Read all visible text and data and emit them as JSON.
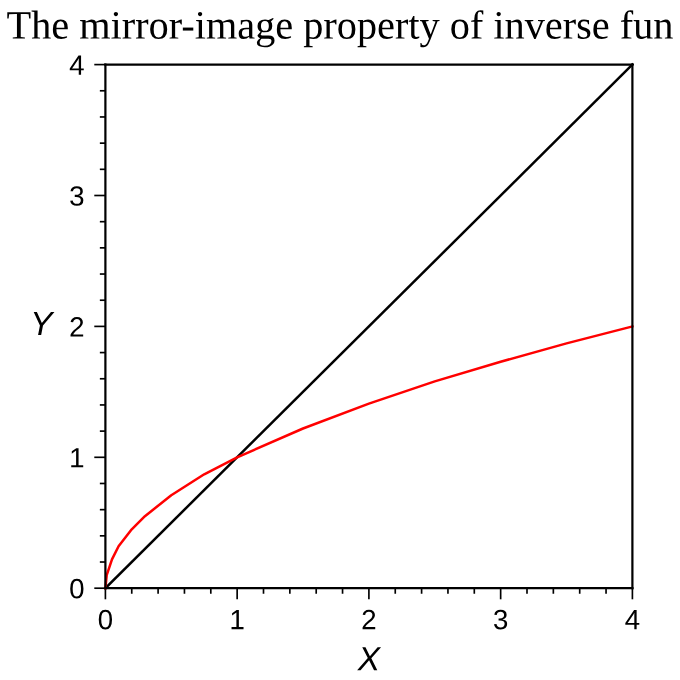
{
  "chart_data": {
    "type": "line",
    "title": "The mirror-image property of inverse fun",
    "xlabel": "X",
    "ylabel": "Y",
    "xlim": [
      0,
      4
    ],
    "ylim": [
      0,
      4
    ],
    "xticks": [
      0,
      1,
      2,
      3,
      4
    ],
    "yticks": [
      0,
      1,
      2,
      3,
      4
    ],
    "grid": false,
    "legend": false,
    "marker": "none",
    "line_style": "solid",
    "series": [
      {
        "color": "#000000",
        "x": [
          0,
          4
        ],
        "values": [
          0,
          4
        ]
      },
      {
        "color": "#ff0000",
        "x": [
          0,
          0.01,
          0.05,
          0.1,
          0.2,
          0.3,
          0.5,
          0.75,
          1,
          1.5,
          2,
          2.5,
          3,
          3.5,
          4
        ],
        "values": [
          0,
          0.1,
          0.22,
          0.32,
          0.45,
          0.55,
          0.71,
          0.87,
          1,
          1.22,
          1.41,
          1.58,
          1.73,
          1.87,
          2
        ]
      }
    ]
  }
}
